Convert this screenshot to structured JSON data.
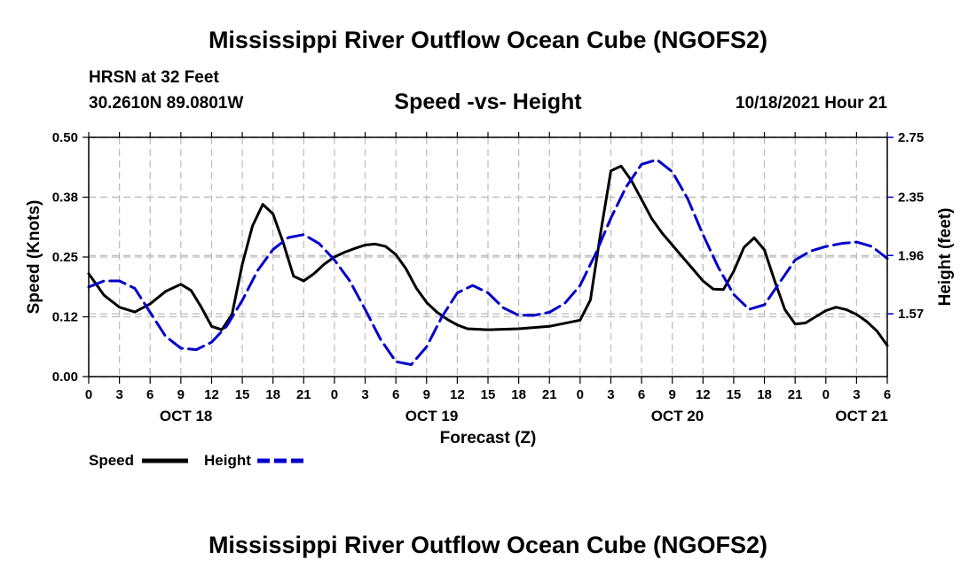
{
  "header": {
    "title": "Mississippi River Outflow Ocean Cube (NGOFS2)",
    "station": "HRSN at 32 Feet",
    "coordinates": "30.2610N  89.0801W",
    "subtitle": "Speed -vs- Height",
    "datetime": "10/18/2021 Hour 21"
  },
  "footer": {
    "title": "Mississippi River Outflow Ocean Cube (NGOFS2)"
  },
  "colors": {
    "speed": "#000000",
    "height": "#0000cc",
    "grid": "#bbbbbb"
  },
  "chart_data": {
    "type": "line",
    "title": "Speed -vs- Height",
    "xlabel": "Forecast (Z)",
    "ylabel": "Speed (Knots)",
    "y2label": "Height (feet)",
    "x_unit": "hours from 10/18 00Z",
    "xlim": [
      0,
      78
    ],
    "ylim": [
      0,
      0.5
    ],
    "y2lim": [
      1.15,
      2.75
    ],
    "x_ticks": [
      0,
      3,
      6,
      9,
      12,
      15,
      18,
      21,
      24,
      27,
      30,
      33,
      36,
      39,
      42,
      45,
      48,
      51,
      54,
      57,
      60,
      63,
      66,
      69,
      72,
      75,
      78
    ],
    "x_tick_labels": [
      "0",
      "3",
      "6",
      "9",
      "12",
      "15",
      "18",
      "21",
      "0",
      "3",
      "6",
      "9",
      "12",
      "15",
      "18",
      "21",
      "0",
      "3",
      "6",
      "9",
      "12",
      "15",
      "18",
      "21",
      "0",
      "3",
      "6"
    ],
    "date_labels": [
      {
        "x": 9.5,
        "label": "OCT 18"
      },
      {
        "x": 33.5,
        "label": "OCT 19"
      },
      {
        "x": 57.5,
        "label": "OCT 20"
      },
      {
        "x": 75.5,
        "label": "OCT 21"
      }
    ],
    "y_ticks": [
      0.0,
      0.125,
      0.25,
      0.375,
      0.5
    ],
    "y_tick_labels": [
      "0.00",
      "0.12",
      "0.25",
      "0.38",
      "0.50"
    ],
    "y2_ticks": [
      1.57,
      1.96,
      2.35,
      2.75
    ],
    "y2_tick_labels": [
      "1.57",
      "1.96",
      "2.35",
      "2.75"
    ],
    "legend": [
      {
        "name": "Speed",
        "style": "solid"
      },
      {
        "name": "Height",
        "style": "dashed"
      }
    ],
    "series": [
      {
        "name": "Speed",
        "axis": "left",
        "x": [
          0,
          1.5,
          3,
          4.5,
          6,
          7.5,
          9,
          10,
          11,
          12,
          13,
          14,
          15,
          16,
          17,
          18,
          19,
          20,
          21,
          22,
          23,
          24,
          25,
          26,
          27,
          28,
          29,
          30,
          31,
          32,
          33,
          34,
          35,
          36,
          37,
          39,
          42,
          45,
          48,
          49,
          50,
          51,
          52,
          53,
          54,
          55,
          56,
          57,
          58,
          59,
          60,
          61,
          62,
          63,
          64,
          65,
          66,
          67,
          68,
          69,
          70,
          71,
          72,
          73,
          74,
          75,
          76,
          77,
          78
        ],
        "values": [
          0.215,
          0.17,
          0.145,
          0.135,
          0.152,
          0.178,
          0.193,
          0.18,
          0.145,
          0.105,
          0.098,
          0.13,
          0.235,
          0.315,
          0.36,
          0.34,
          0.28,
          0.21,
          0.2,
          0.215,
          0.235,
          0.25,
          0.26,
          0.268,
          0.275,
          0.277,
          0.272,
          0.255,
          0.225,
          0.185,
          0.155,
          0.135,
          0.12,
          0.108,
          0.1,
          0.098,
          0.1,
          0.105,
          0.118,
          0.16,
          0.3,
          0.43,
          0.44,
          0.41,
          0.37,
          0.33,
          0.3,
          0.275,
          0.25,
          0.225,
          0.2,
          0.183,
          0.182,
          0.22,
          0.27,
          0.29,
          0.265,
          0.2,
          0.14,
          0.11,
          0.112,
          0.125,
          0.138,
          0.145,
          0.14,
          0.13,
          0.115,
          0.095,
          0.065
        ]
      },
      {
        "name": "Height",
        "axis": "right",
        "x": [
          0,
          1.5,
          3,
          4.5,
          6,
          7.5,
          9,
          10.5,
          12,
          13.5,
          15,
          16.5,
          18,
          19.5,
          21,
          22.5,
          24,
          25.5,
          27,
          28.5,
          30,
          31.5,
          33,
          34.5,
          36,
          37.5,
          39,
          40.5,
          42,
          43.5,
          45,
          46.5,
          48,
          49.5,
          51,
          52.5,
          54,
          55.5,
          57,
          58.5,
          60,
          61.5,
          63,
          64.5,
          66,
          67.5,
          69,
          70.5,
          72,
          73.5,
          75,
          76.5,
          78
        ],
        "values": [
          1.75,
          1.79,
          1.79,
          1.74,
          1.58,
          1.42,
          1.34,
          1.33,
          1.38,
          1.49,
          1.66,
          1.86,
          2.0,
          2.08,
          2.1,
          2.04,
          1.93,
          1.79,
          1.6,
          1.4,
          1.25,
          1.23,
          1.35,
          1.55,
          1.71,
          1.76,
          1.71,
          1.61,
          1.56,
          1.56,
          1.58,
          1.64,
          1.76,
          1.97,
          2.21,
          2.42,
          2.57,
          2.6,
          2.52,
          2.34,
          2.1,
          1.88,
          1.7,
          1.6,
          1.63,
          1.78,
          1.93,
          1.99,
          2.02,
          2.04,
          2.05,
          2.02,
          1.94
        ]
      }
    ]
  }
}
